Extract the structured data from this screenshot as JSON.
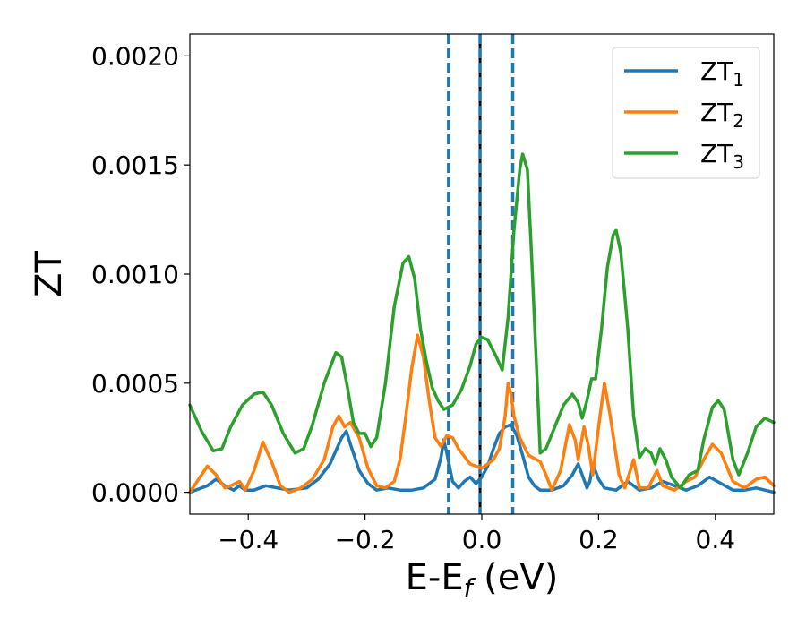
{
  "chart_data": {
    "type": "line",
    "xlabel": {
      "base": "E-E",
      "sub": "f",
      "suffix": " (eV)"
    },
    "ylabel": "ZT",
    "xlim": [
      -0.5,
      0.5
    ],
    "ylim": [
      -0.0001,
      0.0021
    ],
    "xticks": [
      -0.4,
      -0.2,
      0.0,
      0.2,
      0.4
    ],
    "xtick_labels": [
      "−0.4",
      "−0.2",
      "0.0",
      "0.2",
      "0.4"
    ],
    "yticks": [
      0.0,
      0.0005,
      0.001,
      0.0015,
      0.002
    ],
    "ytick_labels": [
      "0.0000",
      "0.0005",
      "0.0010",
      "0.0015",
      "0.0020"
    ],
    "grid": false,
    "legend_position": "top-right",
    "vlines": [
      {
        "x": -0.057,
        "style": "dashed",
        "color": "#1f77b4"
      },
      {
        "x": 0.053,
        "style": "dashed",
        "color": "#1f77b4"
      },
      {
        "x": -0.003,
        "style": "solid",
        "color": "#000000"
      },
      {
        "x": -0.003,
        "style": "dashed",
        "color": "#1f77b4"
      }
    ],
    "series": [
      {
        "name": "ZT",
        "sub": "1",
        "color": "#1f77b4",
        "points": [
          [
            -0.5,
            0.0
          ],
          [
            -0.47,
            3e-05
          ],
          [
            -0.455,
            6e-05
          ],
          [
            -0.44,
            3e-05
          ],
          [
            -0.425,
            1e-05
          ],
          [
            -0.415,
            3e-05
          ],
          [
            -0.405,
            1e-05
          ],
          [
            -0.39,
            1e-05
          ],
          [
            -0.37,
            3e-05
          ],
          [
            -0.35,
            2e-05
          ],
          [
            -0.33,
            1e-05
          ],
          [
            -0.3,
            2e-05
          ],
          [
            -0.28,
            6e-05
          ],
          [
            -0.26,
            0.00013
          ],
          [
            -0.24,
            0.00025
          ],
          [
            -0.232,
            0.00028
          ],
          [
            -0.225,
            0.00022
          ],
          [
            -0.21,
            0.0001
          ],
          [
            -0.195,
            4e-05
          ],
          [
            -0.18,
            1e-05
          ],
          [
            -0.16,
            2e-05
          ],
          [
            -0.14,
            1e-05
          ],
          [
            -0.12,
            1e-05
          ],
          [
            -0.1,
            2e-05
          ],
          [
            -0.08,
            6e-05
          ],
          [
            -0.07,
            0.00016
          ],
          [
            -0.065,
            0.00024
          ],
          [
            -0.06,
            0.00018
          ],
          [
            -0.05,
            5e-05
          ],
          [
            -0.04,
            2e-05
          ],
          [
            -0.03,
            5e-05
          ],
          [
            -0.02,
            7e-05
          ],
          [
            -0.01,
            4e-05
          ],
          [
            0.0,
            7e-05
          ],
          [
            0.01,
            0.00012
          ],
          [
            0.02,
            0.0002
          ],
          [
            0.03,
            0.00027
          ],
          [
            0.04,
            0.0003
          ],
          [
            0.05,
            0.00031
          ],
          [
            0.06,
            0.00026
          ],
          [
            0.07,
            0.00017
          ],
          [
            0.08,
            7e-05
          ],
          [
            0.09,
            3e-05
          ],
          [
            0.1,
            1e-05
          ],
          [
            0.12,
            1e-05
          ],
          [
            0.14,
            3e-05
          ],
          [
            0.155,
            8e-05
          ],
          [
            0.165,
            0.00013
          ],
          [
            0.172,
            8e-05
          ],
          [
            0.18,
            2e-05
          ],
          [
            0.185,
            5e-05
          ],
          [
            0.19,
            0.00013
          ],
          [
            0.2,
            6e-05
          ],
          [
            0.21,
            2e-05
          ],
          [
            0.23,
            1e-05
          ],
          [
            0.25,
            5e-05
          ],
          [
            0.26,
            3e-05
          ],
          [
            0.27,
            1e-05
          ],
          [
            0.29,
            2e-05
          ],
          [
            0.31,
            5e-05
          ],
          [
            0.33,
            3e-05
          ],
          [
            0.35,
            1e-05
          ],
          [
            0.37,
            3e-05
          ],
          [
            0.39,
            7e-05
          ],
          [
            0.41,
            4e-05
          ],
          [
            0.43,
            1e-05
          ],
          [
            0.45,
            1e-05
          ],
          [
            0.47,
            2e-05
          ],
          [
            0.5,
            0.0
          ]
        ]
      },
      {
        "name": "ZT",
        "sub": "2",
        "color": "#ff7f0e",
        "points": [
          [
            -0.5,
            0.0
          ],
          [
            -0.485,
            6e-05
          ],
          [
            -0.47,
            0.00012
          ],
          [
            -0.455,
            8e-05
          ],
          [
            -0.44,
            2e-05
          ],
          [
            -0.43,
            3e-05
          ],
          [
            -0.415,
            5e-05
          ],
          [
            -0.405,
            1e-05
          ],
          [
            -0.39,
            0.0001
          ],
          [
            -0.375,
            0.00023
          ],
          [
            -0.36,
            0.00014
          ],
          [
            -0.345,
            3e-05
          ],
          [
            -0.33,
            0.0
          ],
          [
            -0.31,
            2e-05
          ],
          [
            -0.29,
            6e-05
          ],
          [
            -0.27,
            0.00015
          ],
          [
            -0.255,
            0.0003
          ],
          [
            -0.245,
            0.00035
          ],
          [
            -0.235,
            0.0003
          ],
          [
            -0.225,
            0.00032
          ],
          [
            -0.21,
            0.00025
          ],
          [
            -0.195,
            0.00011
          ],
          [
            -0.18,
            3e-05
          ],
          [
            -0.165,
            2e-05
          ],
          [
            -0.15,
            5e-05
          ],
          [
            -0.14,
            0.00015
          ],
          [
            -0.13,
            0.00035
          ],
          [
            -0.12,
            0.00057
          ],
          [
            -0.11,
            0.00072
          ],
          [
            -0.1,
            0.00062
          ],
          [
            -0.09,
            0.00042
          ],
          [
            -0.08,
            0.00025
          ],
          [
            -0.07,
            0.00021
          ],
          [
            -0.06,
            0.00026
          ],
          [
            -0.05,
            0.00025
          ],
          [
            -0.04,
            0.0002
          ],
          [
            -0.02,
            0.00013
          ],
          [
            0.0,
            0.00011
          ],
          [
            0.02,
            0.00015
          ],
          [
            0.03,
            0.0002
          ],
          [
            0.04,
            0.00035
          ],
          [
            0.045,
            0.0005
          ],
          [
            0.05,
            0.00045
          ],
          [
            0.055,
            0.00035
          ],
          [
            0.065,
            0.00025
          ],
          [
            0.08,
            0.00017
          ],
          [
            0.1,
            0.00014
          ],
          [
            0.11,
            8e-05
          ],
          [
            0.12,
            1e-05
          ],
          [
            0.135,
            0.0001
          ],
          [
            0.15,
            0.00031
          ],
          [
            0.16,
            0.00024
          ],
          [
            0.165,
            0.00015
          ],
          [
            0.175,
            0.0003
          ],
          [
            0.182,
            0.00022
          ],
          [
            0.19,
            8e-05
          ],
          [
            0.2,
            0.0003
          ],
          [
            0.21,
            0.0005
          ],
          [
            0.22,
            0.00035
          ],
          [
            0.235,
            8e-05
          ],
          [
            0.245,
            2e-05
          ],
          [
            0.26,
            0.00015
          ],
          [
            0.27,
            2e-05
          ],
          [
            0.285,
            2e-05
          ],
          [
            0.3,
            0.0001
          ],
          [
            0.31,
            3e-05
          ],
          [
            0.33,
            1e-05
          ],
          [
            0.35,
            5e-05
          ],
          [
            0.365,
            7e-05
          ],
          [
            0.38,
            0.00015
          ],
          [
            0.395,
            0.00022
          ],
          [
            0.41,
            0.00018
          ],
          [
            0.43,
            5e-05
          ],
          [
            0.45,
            2e-05
          ],
          [
            0.47,
            6e-05
          ],
          [
            0.485,
            7e-05
          ],
          [
            0.5,
            3e-05
          ]
        ]
      },
      {
        "name": "ZT",
        "sub": "3",
        "color": "#2ca02c",
        "points": [
          [
            -0.5,
            0.0004
          ],
          [
            -0.48,
            0.00028
          ],
          [
            -0.46,
            0.00019
          ],
          [
            -0.445,
            0.0002
          ],
          [
            -0.43,
            0.0003
          ],
          [
            -0.41,
            0.0004
          ],
          [
            -0.39,
            0.00045
          ],
          [
            -0.375,
            0.00046
          ],
          [
            -0.36,
            0.0004
          ],
          [
            -0.34,
            0.00027
          ],
          [
            -0.32,
            0.00018
          ],
          [
            -0.305,
            0.0002
          ],
          [
            -0.29,
            0.00031
          ],
          [
            -0.27,
            0.0005
          ],
          [
            -0.25,
            0.00064
          ],
          [
            -0.24,
            0.00062
          ],
          [
            -0.23,
            0.00048
          ],
          [
            -0.22,
            0.00032
          ],
          [
            -0.21,
            0.00027
          ],
          [
            -0.2,
            0.00027
          ],
          [
            -0.19,
            0.00021
          ],
          [
            -0.18,
            0.00025
          ],
          [
            -0.165,
            0.0005
          ],
          [
            -0.15,
            0.00085
          ],
          [
            -0.135,
            0.00105
          ],
          [
            -0.125,
            0.00108
          ],
          [
            -0.115,
            0.00098
          ],
          [
            -0.105,
            0.00075
          ],
          [
            -0.095,
            0.0006
          ],
          [
            -0.085,
            0.00048
          ],
          [
            -0.075,
            0.00042
          ],
          [
            -0.065,
            0.00038
          ],
          [
            -0.05,
            0.0004
          ],
          [
            -0.035,
            0.00047
          ],
          [
            -0.02,
            0.00058
          ],
          [
            -0.01,
            0.00068
          ],
          [
            0.0,
            0.00071
          ],
          [
            0.01,
            0.0007
          ],
          [
            0.025,
            0.00062
          ],
          [
            0.035,
            0.00056
          ],
          [
            0.045,
            0.0008
          ],
          [
            0.055,
            0.0012
          ],
          [
            0.065,
            0.00148
          ],
          [
            0.07,
            0.00155
          ],
          [
            0.078,
            0.00148
          ],
          [
            0.085,
            0.0011
          ],
          [
            0.095,
            0.0005
          ],
          [
            0.1,
            0.00018
          ],
          [
            0.11,
            0.0002
          ],
          [
            0.125,
            0.0003
          ],
          [
            0.14,
            0.0004
          ],
          [
            0.155,
            0.00045
          ],
          [
            0.165,
            0.00041
          ],
          [
            0.172,
            0.00034
          ],
          [
            0.18,
            0.00042
          ],
          [
            0.188,
            0.00052
          ],
          [
            0.195,
            0.00052
          ],
          [
            0.205,
            0.00075
          ],
          [
            0.215,
            0.00103
          ],
          [
            0.225,
            0.00118
          ],
          [
            0.23,
            0.0012
          ],
          [
            0.238,
            0.0011
          ],
          [
            0.25,
            0.00075
          ],
          [
            0.26,
            0.00035
          ],
          [
            0.27,
            0.00016
          ],
          [
            0.28,
            0.0002
          ],
          [
            0.29,
            0.00018
          ],
          [
            0.297,
            0.00013
          ],
          [
            0.305,
            0.0002
          ],
          [
            0.315,
            0.00015
          ],
          [
            0.325,
            7e-05
          ],
          [
            0.34,
            2e-05
          ],
          [
            0.355,
            8e-05
          ],
          [
            0.37,
            0.0001
          ],
          [
            0.38,
            0.00024
          ],
          [
            0.395,
            0.00039
          ],
          [
            0.405,
            0.00042
          ],
          [
            0.415,
            0.00038
          ],
          [
            0.43,
            0.00015
          ],
          [
            0.44,
            8e-05
          ],
          [
            0.455,
            0.00018
          ],
          [
            0.47,
            0.0003
          ],
          [
            0.485,
            0.00034
          ],
          [
            0.5,
            0.00032
          ]
        ]
      }
    ]
  }
}
